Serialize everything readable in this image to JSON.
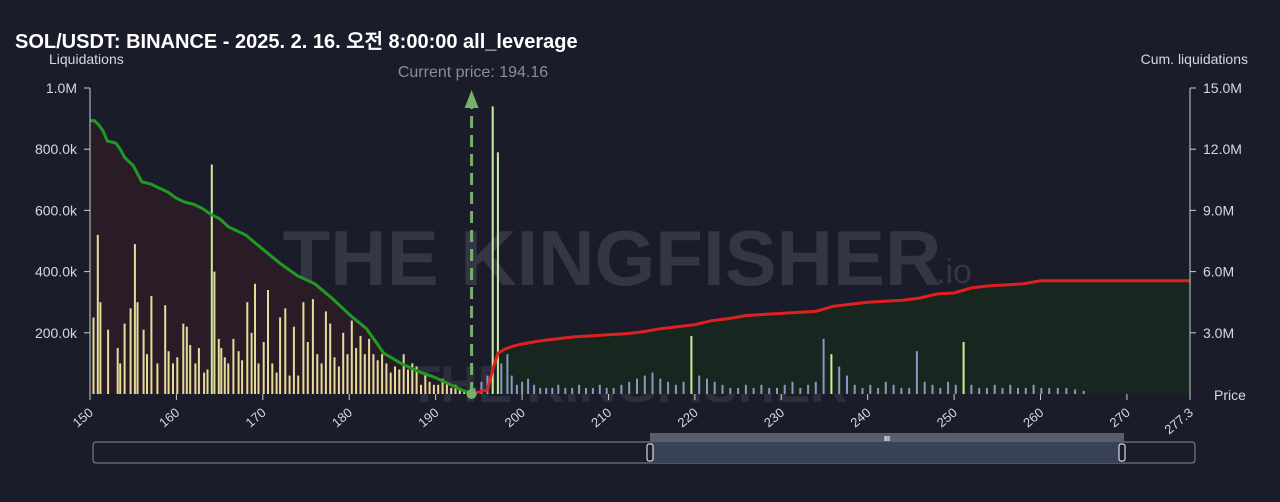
{
  "chart_data": {
    "type": "bar",
    "title": "SOL/USDT: BINANCE - 2025. 2. 16. 오전 8:00:00 all_leverage",
    "ylabel_left": "Liquidations",
    "ylabel_right": "Cum. liquidations",
    "xlabel": "Price",
    "current_price_label": "Current price: 194.16",
    "current_price": 194.16,
    "watermark_big": "THE KINGFISHER",
    "watermark_suffix": ".io",
    "watermark_small": "THE KINGFISHER",
    "x_range": [
      150,
      277.3
    ],
    "y_left_range": [
      0,
      1000000
    ],
    "y_right_range": [
      0,
      15000000
    ],
    "x_ticks": [
      "150",
      "160",
      "170",
      "180",
      "190",
      "200",
      "210",
      "220",
      "230",
      "240",
      "250",
      "260",
      "270",
      "277.3"
    ],
    "x_tick_values": [
      150,
      160,
      170,
      180,
      190,
      200,
      210,
      220,
      230,
      240,
      250,
      260,
      270,
      277.3
    ],
    "y_left_ticks": [
      "200.0k",
      "400.0k",
      "600.0k",
      "800.0k",
      "1.0M"
    ],
    "y_left_tick_values": [
      200000,
      400000,
      600000,
      800000,
      1000000
    ],
    "y_right_ticks": [
      "3.0M",
      "6.0M",
      "9.0M",
      "12.0M",
      "15.0M"
    ],
    "y_right_tick_values": [
      3000000,
      6000000,
      9000000,
      12000000,
      15000000
    ],
    "colors": {
      "long_bar": "#e6dc9a",
      "long_bar_highlight": "#c9ee9e",
      "short_bar": "#8b97c2",
      "short_bar_highlight": "#c9ee9e",
      "long_cum": "#229922",
      "short_cum": "#e02020",
      "long_area": "#2a1c27",
      "short_area": "#17261f",
      "current_price": "#76b06a",
      "background": "#1a1c2a",
      "text": "#d6d8e0",
      "watermark": "#3a3c4a"
    },
    "series": [
      {
        "name": "long",
        "x": [
          150.4,
          150.9,
          151.2,
          152.1,
          153.2,
          153.5,
          154.0,
          154.7,
          155.2,
          155.5,
          156.2,
          156.6,
          157.1,
          157.8,
          158.7,
          159.1,
          159.6,
          160.1,
          160.8,
          161.2,
          161.6,
          162.2,
          162.6,
          163.2,
          163.6,
          164.1,
          164.4,
          164.9,
          165.2,
          165.6,
          166.0,
          166.6,
          167.2,
          167.6,
          168.2,
          168.7,
          169.1,
          169.5,
          170.1,
          170.6,
          171.1,
          171.6,
          172.0,
          172.6,
          173.1,
          173.6,
          174.1,
          174.7,
          175.2,
          175.8,
          176.3,
          176.8,
          177.3,
          177.8,
          178.3,
          178.8,
          179.3,
          179.8,
          180.3,
          180.8,
          181.3,
          181.8,
          182.3,
          182.8,
          183.3,
          183.8,
          184.3,
          184.8,
          185.3,
          185.8,
          186.3,
          186.8,
          187.3,
          187.8,
          188.3,
          188.8,
          189.3,
          189.8,
          190.3,
          190.8,
          191.3,
          191.8,
          192.3,
          192.8,
          193.3,
          193.8
        ],
        "values": [
          250000,
          520000,
          300000,
          210000,
          150000,
          100000,
          230000,
          280000,
          490000,
          300000,
          210000,
          130000,
          320000,
          100000,
          290000,
          140000,
          100000,
          120000,
          230000,
          220000,
          160000,
          100000,
          150000,
          70000,
          80000,
          750000,
          400000,
          180000,
          150000,
          120000,
          100000,
          180000,
          140000,
          110000,
          300000,
          200000,
          360000,
          100000,
          170000,
          340000,
          100000,
          70000,
          250000,
          280000,
          60000,
          220000,
          60000,
          300000,
          170000,
          310000,
          130000,
          100000,
          270000,
          230000,
          120000,
          90000,
          200000,
          130000,
          240000,
          150000,
          190000,
          130000,
          180000,
          130000,
          110000,
          130000,
          100000,
          70000,
          90000,
          80000,
          130000,
          80000,
          100000,
          90000,
          30000,
          70000,
          40000,
          30000,
          30000,
          50000,
          40000,
          20000,
          30000,
          20000,
          15000,
          10000
        ],
        "highlight_x": [
          164.1,
          182.1,
          190.2,
          192.4
        ]
      },
      {
        "name": "short",
        "x": [
          194.5,
          195.3,
          196.0,
          196.6,
          197.2,
          197.6,
          198.3,
          198.8,
          199.4,
          200.0,
          200.7,
          201.4,
          202.1,
          202.8,
          203.5,
          204.2,
          205.0,
          205.8,
          206.6,
          207.4,
          208.2,
          209.0,
          209.8,
          210.6,
          211.5,
          212.4,
          213.3,
          214.2,
          215.1,
          216.0,
          216.9,
          217.8,
          218.7,
          219.6,
          220.5,
          221.4,
          222.3,
          223.2,
          224.1,
          225.0,
          225.9,
          226.8,
          227.7,
          228.6,
          229.5,
          230.4,
          231.3,
          232.2,
          233.1,
          234.0,
          234.9,
          235.8,
          236.7,
          237.6,
          238.5,
          239.4,
          240.3,
          241.2,
          242.1,
          243.0,
          243.9,
          244.8,
          245.7,
          246.6,
          247.5,
          248.4,
          249.3,
          250.2,
          251.1,
          252.0,
          252.9,
          253.8,
          254.7,
          255.6,
          256.5,
          257.4,
          258.3,
          259.2,
          260.1,
          261.0,
          262.0,
          263.0,
          264.0,
          265.0
        ],
        "values": [
          20000,
          40000,
          60000,
          940000,
          790000,
          100000,
          130000,
          60000,
          30000,
          40000,
          50000,
          30000,
          20000,
          20000,
          20000,
          30000,
          20000,
          20000,
          30000,
          20000,
          20000,
          30000,
          20000,
          20000,
          30000,
          40000,
          50000,
          60000,
          70000,
          50000,
          40000,
          30000,
          40000,
          190000,
          60000,
          50000,
          40000,
          30000,
          20000,
          20000,
          30000,
          20000,
          30000,
          20000,
          20000,
          30000,
          40000,
          20000,
          30000,
          40000,
          180000,
          130000,
          90000,
          60000,
          30000,
          20000,
          30000,
          20000,
          40000,
          30000,
          20000,
          20000,
          140000,
          40000,
          30000,
          20000,
          40000,
          30000,
          170000,
          30000,
          20000,
          20000,
          30000,
          20000,
          30000,
          20000,
          20000,
          30000,
          20000,
          20000,
          20000,
          20000,
          15000,
          10000
        ],
        "highlight_x": [
          196.6,
          197.2,
          219.6,
          235.8,
          251.1
        ]
      },
      {
        "name": "long_cum",
        "x": [
          150.0,
          150.5,
          151.0,
          151.5,
          152.0,
          153.0,
          153.5,
          154.0,
          155.0,
          155.5,
          156.0,
          157.0,
          159.0,
          160.0,
          161.0,
          162.0,
          163.0,
          164.0,
          165.0,
          166.0,
          167.0,
          168.0,
          170.0,
          172.0,
          174.0,
          176.0,
          178.0,
          180.0,
          182.0,
          183.0,
          184.0,
          186.0,
          188.0,
          190.0,
          191.0,
          192.0,
          193.0,
          194.16
        ],
        "values": [
          13400000,
          13400000,
          13200000,
          12900000,
          12400000,
          12300000,
          12000000,
          11600000,
          11200000,
          10800000,
          10400000,
          10300000,
          9900000,
          9600000,
          9400000,
          9300000,
          9100000,
          8800000,
          8600000,
          8200000,
          8000000,
          7800000,
          7100000,
          6400000,
          5800000,
          5400000,
          4700000,
          3900000,
          3200000,
          2600000,
          2000000,
          1500000,
          1100000,
          800000,
          600000,
          400000,
          200000,
          0
        ]
      },
      {
        "name": "short_cum",
        "x": [
          194.16,
          195.0,
          196.0,
          196.6,
          197.2,
          198.0,
          199.0,
          200.0,
          202.0,
          204.0,
          206.0,
          208.0,
          210.0,
          212.0,
          214.0,
          216.0,
          218.0,
          220.0,
          222.0,
          224.0,
          226.0,
          228.0,
          230.0,
          232.0,
          234.0,
          236.0,
          238.0,
          240.0,
          242.0,
          244.0,
          246.0,
          248.0,
          250.0,
          252.0,
          254.0,
          256.0,
          258.0,
          260.0,
          262.0,
          264.0,
          268.0,
          272.0,
          277.3
        ],
        "values": [
          0,
          100000,
          200000,
          1200000,
          2000000,
          2200000,
          2350000,
          2450000,
          2600000,
          2700000,
          2800000,
          2850000,
          2900000,
          2950000,
          3050000,
          3200000,
          3300000,
          3400000,
          3600000,
          3700000,
          3850000,
          3900000,
          3950000,
          4000000,
          4050000,
          4300000,
          4400000,
          4500000,
          4550000,
          4600000,
          4700000,
          4900000,
          4950000,
          5200000,
          5300000,
          5350000,
          5400000,
          5550000,
          5550000,
          5550000,
          5550000,
          5550000,
          5550000
        ]
      }
    ],
    "legend_placement": "none",
    "grid": false
  },
  "range_slider": {
    "handle_glyph": "III"
  }
}
